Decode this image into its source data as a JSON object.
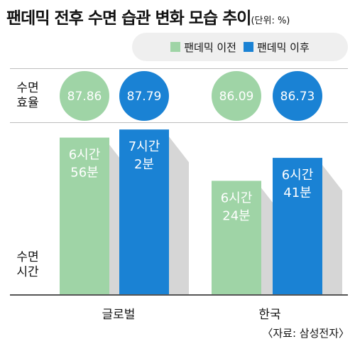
{
  "title": "팬데믹 전후 수면 습관 변화 모습 추이",
  "unit": "(단위: %)",
  "legend": [
    {
      "label": "팬데믹 이전",
      "color": "#9fd4a6"
    },
    {
      "label": "팬데믹 이후",
      "color": "#1a82d4"
    }
  ],
  "row_labels": {
    "efficiency": [
      "수면",
      "효율"
    ],
    "time": [
      "수면",
      "시간"
    ]
  },
  "source": "〈자료: 삼성전자〉",
  "chart_data": {
    "type": "bar",
    "categories": [
      "글로벌",
      "한국"
    ],
    "efficiency": {
      "series": [
        {
          "name": "팬데믹 이전",
          "values": [
            87.86,
            86.09
          ],
          "labels": [
            "87.86",
            "86.09"
          ]
        },
        {
          "name": "팬데믹 이후",
          "values": [
            87.79,
            86.73
          ],
          "labels": [
            "87.79",
            "86.73"
          ]
        }
      ]
    },
    "sleep_time_minutes": {
      "series": [
        {
          "name": "팬데믹 이전",
          "values": [
            416,
            384
          ],
          "labels": [
            [
              "6시간",
              "56분"
            ],
            [
              "6시간",
              "24분"
            ]
          ]
        },
        {
          "name": "팬데믹 이후",
          "values": [
            422,
            401
          ],
          "labels": [
            [
              "7시간",
              "2분"
            ],
            [
              "6시간",
              "41분"
            ]
          ]
        }
      ]
    },
    "colors": {
      "before": "#9fd4a6",
      "after": "#1a82d4",
      "shadow": "#d6d6d6"
    }
  }
}
